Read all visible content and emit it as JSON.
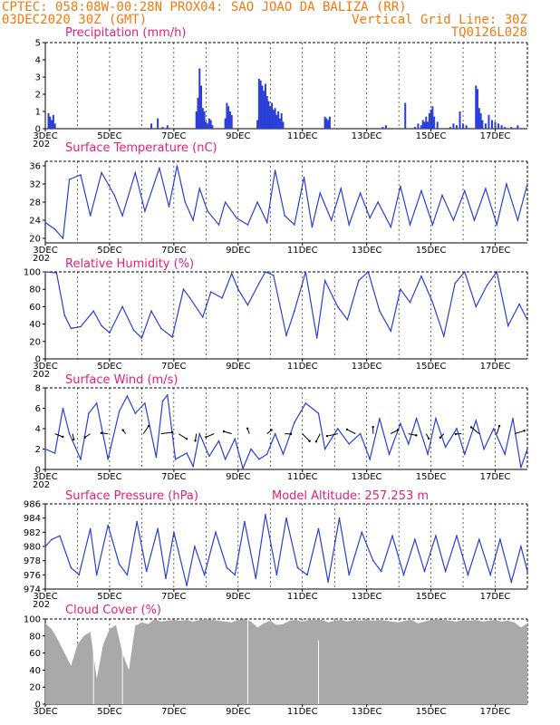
{
  "header": {
    "line1_left": "CPTEC:   058:08W-00:28N   PROX04: SAO JOAO DA BALIZA (RR)",
    "line2_left": "03DEC2020 30Z (GMT)",
    "line2_right": "Vertical Grid Line: 30Z",
    "line3_right": "TQ0126L028"
  },
  "colors": {
    "header": "#f07a10",
    "title": "#e0207a",
    "line": "#2a3fd6",
    "cloud": "#a9a9a9"
  },
  "x_axis": {
    "labels": [
      "3DEC",
      "5DEC",
      "7DEC",
      "9DEC",
      "11DEC",
      "13DEC",
      "15DEC",
      "17DEC"
    ],
    "label_days": [
      0,
      2,
      4,
      6,
      8,
      10,
      12,
      14
    ],
    "cut_label": "202"
  },
  "panels": {
    "precip": {
      "title": "Precipitation  (mm/h)"
    },
    "temp": {
      "title": "Surface Temperature  (nC)"
    },
    "rh": {
      "title": "Relative Humidity  (%)"
    },
    "wind": {
      "title": "Surface Wind  (m/s)"
    },
    "pressure": {
      "title": "Surface Pressure (hPa)",
      "extra": "Model Altitude: 257.253  m"
    },
    "cloud": {
      "title": "Cloud Cover  (%)"
    }
  },
  "chart_data": [
    {
      "type": "bar",
      "title": "Precipitation  (mm/h)",
      "ylim": [
        0,
        5
      ],
      "yticks": [
        0,
        1,
        2,
        3,
        4,
        5
      ],
      "x_unit": "days since 3DEC",
      "x": [
        0.1,
        0.15,
        0.2,
        0.25,
        0.3,
        3.3,
        3.5,
        3.65,
        3.8,
        4.7,
        4.75,
        4.8,
        4.85,
        4.9,
        4.95,
        5.0,
        5.05,
        5.1,
        5.15,
        5.2,
        5.6,
        5.65,
        5.7,
        5.75,
        5.8,
        6.6,
        6.65,
        6.7,
        6.75,
        6.8,
        6.85,
        6.9,
        6.95,
        7.0,
        7.05,
        7.1,
        7.15,
        7.2,
        7.25,
        7.3,
        7.35,
        7.4,
        8.7,
        8.75,
        8.8,
        8.85,
        10.5,
        10.6,
        11.2,
        11.5,
        11.6,
        11.7,
        11.75,
        11.8,
        11.85,
        11.9,
        11.95,
        12.0,
        12.05,
        12.1,
        12.2,
        12.6,
        12.7,
        12.8,
        12.9,
        13.0,
        13.1,
        13.4,
        13.45,
        13.5,
        13.55,
        13.6,
        13.7,
        13.8,
        13.9,
        14.0,
        14.1,
        14.2,
        14.3,
        14.5,
        14.7
      ],
      "values": [
        0.9,
        0.7,
        0.5,
        0.8,
        0.3,
        0.3,
        0.6,
        0.1,
        0.2,
        1.0,
        1.8,
        3.5,
        2.5,
        1.2,
        1.0,
        0.4,
        0.3,
        0.6,
        0.5,
        0.2,
        0.6,
        1.5,
        1.3,
        1.0,
        0.8,
        0.5,
        2.9,
        2.8,
        2.5,
        2.2,
        2.6,
        1.9,
        1.6,
        1.3,
        1.5,
        1.1,
        1.2,
        0.8,
        1.0,
        0.6,
        0.9,
        0.4,
        0.7,
        0.6,
        0.5,
        0.7,
        0.1,
        0.2,
        1.5,
        0.1,
        0.3,
        0.2,
        0.5,
        0.4,
        0.7,
        0.4,
        0.9,
        1.1,
        1.3,
        0.7,
        0.4,
        0.1,
        0.3,
        0.2,
        1.0,
        0.3,
        0.2,
        2.5,
        2.3,
        1.2,
        0.9,
        0.5,
        0.3,
        0.8,
        0.5,
        0.4,
        0.3,
        0.2,
        0.1,
        0.1,
        0.2
      ]
    },
    {
      "type": "line",
      "title": "Surface Temperature  (nC)",
      "ylim": [
        19,
        37
      ],
      "yticks": [
        20,
        24,
        28,
        32,
        36
      ],
      "x_unit": "days since 3DEC",
      "x": [
        0,
        0.3,
        0.55,
        0.75,
        1.1,
        1.4,
        1.75,
        2.15,
        2.4,
        2.8,
        3.1,
        3.55,
        3.85,
        4.1,
        4.35,
        4.6,
        4.8,
        5.05,
        5.4,
        5.6,
        5.95,
        6.3,
        6.6,
        6.9,
        7.15,
        7.45,
        7.75,
        8.05,
        8.3,
        8.55,
        8.9,
        9.2,
        9.45,
        9.8,
        10.1,
        10.35,
        10.75,
        11.05,
        11.35,
        11.7,
        12.05,
        12.35,
        12.7,
        13.05,
        13.35,
        13.7,
        14.05,
        14.35,
        14.7,
        15.0
      ],
      "values": [
        23.5,
        22,
        20,
        33,
        34,
        25,
        34.5,
        29.5,
        25,
        34.5,
        26,
        35.5,
        27,
        36,
        28,
        24,
        31,
        26,
        23,
        28,
        24.5,
        23,
        28,
        23.5,
        35,
        25,
        23,
        33.5,
        22.5,
        30,
        24,
        31,
        23,
        30,
        24.5,
        28,
        22.5,
        31.5,
        23,
        30.5,
        23,
        29.5,
        24,
        30.5,
        24,
        31,
        23,
        32,
        24,
        32
      ]
    },
    {
      "type": "line",
      "title": "Relative Humidity  (%)",
      "ylim": [
        0,
        100
      ],
      "yticks": [
        0,
        20,
        40,
        60,
        80,
        100
      ],
      "x_unit": "days since 3DEC",
      "x": [
        0,
        0.35,
        0.6,
        0.8,
        1.1,
        1.5,
        1.75,
        2.0,
        2.4,
        2.75,
        3.0,
        3.3,
        3.6,
        3.95,
        4.3,
        4.5,
        4.9,
        5.15,
        5.5,
        5.8,
        6.0,
        6.3,
        6.65,
        6.85,
        7.1,
        7.5,
        7.75,
        8.1,
        8.45,
        8.7,
        9.1,
        9.4,
        9.75,
        10.05,
        10.4,
        10.75,
        11.05,
        11.35,
        11.7,
        12.05,
        12.4,
        12.75,
        13.05,
        13.4,
        13.75,
        14.05,
        14.4,
        14.75,
        15.0
      ],
      "values": [
        100,
        99,
        50,
        35,
        37,
        55,
        38,
        30,
        60,
        33,
        24,
        55,
        35,
        25,
        80,
        70,
        48,
        77,
        70,
        98,
        80,
        62,
        87,
        100,
        96,
        27,
        55,
        100,
        24,
        90,
        60,
        45,
        90,
        100,
        55,
        32,
        80,
        65,
        95,
        65,
        26,
        87,
        100,
        60,
        85,
        100,
        38,
        63,
        45
      ]
    },
    {
      "type": "line",
      "title": "Surface Wind  (m/s)",
      "ylim": [
        0,
        8
      ],
      "yticks": [
        0,
        2,
        4,
        6,
        8
      ],
      "x_unit": "days since 3DEC",
      "x": [
        0,
        0.3,
        0.55,
        0.75,
        1.1,
        1.35,
        1.6,
        1.95,
        2.3,
        2.55,
        2.8,
        3.1,
        3.45,
        3.65,
        3.8,
        4.05,
        4.4,
        4.6,
        4.8,
        5.1,
        5.4,
        5.6,
        5.9,
        6.15,
        6.4,
        6.65,
        6.9,
        7.15,
        7.4,
        7.75,
        8.1,
        8.5,
        8.7,
        9.1,
        9.45,
        9.8,
        10.1,
        10.4,
        10.7,
        11.05,
        11.3,
        11.55,
        11.9,
        12.15,
        12.45,
        12.8,
        13.05,
        13.4,
        13.65,
        13.95,
        14.3,
        14.55,
        14.8,
        15.0
      ],
      "values": [
        2,
        1.6,
        6,
        3.5,
        1,
        5.5,
        6.5,
        1,
        5.7,
        7.2,
        5.5,
        6.5,
        1.2,
        6.7,
        7.3,
        1,
        1.6,
        0.3,
        3.5,
        1.3,
        2.8,
        1,
        3,
        0.1,
        2,
        1,
        1.5,
        3.5,
        1.5,
        4.6,
        6.5,
        5.5,
        2,
        4,
        2.5,
        3.5,
        1,
        5,
        1.5,
        4.5,
        2.5,
        5,
        1.5,
        5,
        2.2,
        4,
        1.5,
        4.8,
        2,
        4,
        1.5,
        5,
        0.2,
        2
      ]
    },
    {
      "type": "line",
      "title": "Surface Pressure (hPa)",
      "ylim": [
        974,
        986
      ],
      "yticks": [
        974,
        976,
        978,
        980,
        982,
        984,
        986
      ],
      "x_unit": "days since 3DEC",
      "x": [
        0,
        0.2,
        0.45,
        0.8,
        1.05,
        1.4,
        1.6,
        1.95,
        2.3,
        2.55,
        2.85,
        3.15,
        3.5,
        3.75,
        4.0,
        4.4,
        4.65,
        4.95,
        5.3,
        5.65,
        5.9,
        6.2,
        6.55,
        6.85,
        7.2,
        7.5,
        7.85,
        8.15,
        8.5,
        8.8,
        9.15,
        9.45,
        9.85,
        10.2,
        10.45,
        10.8,
        11.15,
        11.5,
        11.8,
        12.15,
        12.45,
        12.8,
        13.15,
        13.5,
        13.85,
        14.15,
        14.5,
        14.8,
        15.0
      ],
      "values": [
        980,
        981,
        981.5,
        977,
        976,
        982.5,
        976,
        983,
        977.5,
        976,
        983.5,
        976.5,
        982.5,
        975.5,
        982,
        974.5,
        980,
        976,
        982,
        977,
        976,
        983.5,
        975.5,
        984.5,
        976,
        984,
        977,
        976,
        982.5,
        975,
        984,
        976,
        982,
        978,
        976.5,
        981.5,
        976,
        981,
        976.5,
        981.5,
        976.5,
        981.5,
        976,
        981,
        976,
        981,
        975,
        980,
        976.5
      ]
    },
    {
      "type": "area",
      "title": "Cloud Cover  (%)",
      "ylim": [
        0,
        100
      ],
      "yticks": [
        0,
        20,
        40,
        60,
        80,
        100
      ],
      "x_unit": "days since 3DEC",
      "x": [
        0,
        0.2,
        0.4,
        0.6,
        0.8,
        1.0,
        1.2,
        1.4,
        1.6,
        1.8,
        2.0,
        2.2,
        2.4,
        2.6,
        2.8,
        3.0,
        3.2,
        3.4,
        3.6,
        3.8,
        4.0,
        4.2,
        4.4,
        4.6,
        4.8,
        5.0,
        5.2,
        5.4,
        5.6,
        5.8,
        6.0,
        6.2,
        6.4,
        6.6,
        6.8,
        7.0,
        7.2,
        7.4,
        7.6,
        7.8,
        8.0,
        8.2,
        8.4,
        8.6,
        8.8,
        9.0,
        9.2,
        9.4,
        9.6,
        9.8,
        10.0,
        10.2,
        10.4,
        10.6,
        10.8,
        11.0,
        11.2,
        11.4,
        11.6,
        11.8,
        12.0,
        12.2,
        12.4,
        12.6,
        12.8,
        13.0,
        13.2,
        13.4,
        13.6,
        13.8,
        14.0,
        14.2,
        14.4,
        14.6,
        14.8,
        15.0
      ],
      "values": [
        95,
        88,
        75,
        60,
        45,
        70,
        80,
        85,
        30,
        70,
        88,
        93,
        60,
        40,
        92,
        96,
        94,
        100,
        97,
        98,
        99,
        98,
        99,
        97,
        99,
        100,
        99,
        98,
        97,
        96,
        99,
        100,
        97,
        90,
        95,
        98,
        93,
        94,
        98,
        99,
        97,
        99,
        99,
        99,
        96,
        98,
        99,
        97,
        99,
        98,
        99,
        98,
        99,
        98,
        97,
        96,
        98,
        99,
        95,
        97,
        99,
        100,
        99,
        98,
        97,
        99,
        98,
        99,
        97,
        98,
        99,
        97,
        98,
        96,
        90,
        95
      ]
    }
  ]
}
